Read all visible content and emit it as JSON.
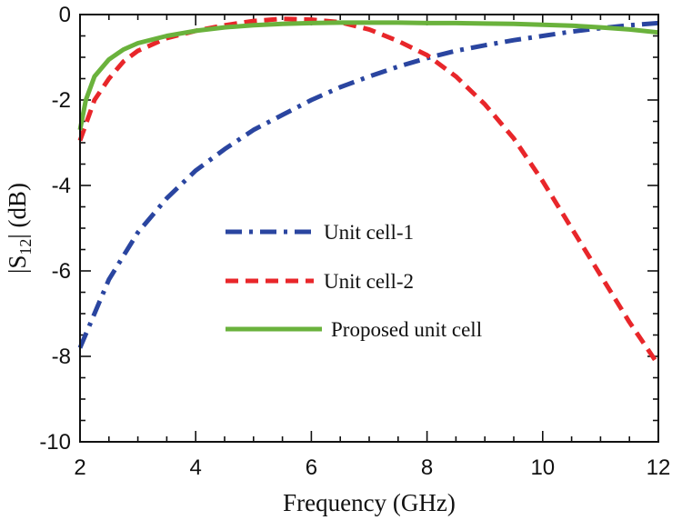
{
  "chart_data": {
    "type": "line",
    "title": "",
    "xlabel": "Frequency (GHz)",
    "ylabel": "|S12| (dB)",
    "ylabel_parts": {
      "prefix": "|S",
      "subscript": "12",
      "suffix": "| (dB)"
    },
    "xlim": [
      2,
      12
    ],
    "ylim": [
      -10,
      0
    ],
    "x_ticks": [
      2,
      4,
      6,
      8,
      10,
      12
    ],
    "y_ticks": [
      0,
      -2,
      -4,
      -6,
      -8,
      -10
    ],
    "x_tick_labels": [
      "2",
      "4",
      "6",
      "8",
      "10",
      "12"
    ],
    "y_tick_labels": [
      "0",
      "-2",
      "-4",
      "-6",
      "-8",
      "-10"
    ],
    "grid": false,
    "legend_position": "center",
    "series": [
      {
        "name": "Unit cell-1",
        "color": "#2a45a0",
        "style": "dashdot",
        "x": [
          2.0,
          2.5,
          3.0,
          3.5,
          4.0,
          4.5,
          5.0,
          5.5,
          6.0,
          6.5,
          7.0,
          7.5,
          8.0,
          8.5,
          9.0,
          9.5,
          10.0,
          10.5,
          11.0,
          11.5,
          12.0
        ],
        "y": [
          -7.8,
          -6.2,
          -5.1,
          -4.3,
          -3.65,
          -3.15,
          -2.7,
          -2.35,
          -2.0,
          -1.7,
          -1.45,
          -1.22,
          -1.02,
          -0.85,
          -0.72,
          -0.6,
          -0.5,
          -0.4,
          -0.32,
          -0.25,
          -0.2
        ]
      },
      {
        "name": "Unit cell-2",
        "color": "#e8262a",
        "style": "dashed",
        "x": [
          2.0,
          2.25,
          2.5,
          2.75,
          3.0,
          3.5,
          4.0,
          4.5,
          5.0,
          5.5,
          6.0,
          6.5,
          7.0,
          7.5,
          8.0,
          8.5,
          9.0,
          9.5,
          10.0,
          10.5,
          11.0,
          11.5,
          12.0
        ],
        "y": [
          -2.95,
          -2.0,
          -1.5,
          -1.1,
          -0.85,
          -0.55,
          -0.38,
          -0.25,
          -0.15,
          -0.1,
          -0.12,
          -0.18,
          -0.35,
          -0.62,
          -0.95,
          -1.45,
          -2.1,
          -2.9,
          -3.9,
          -5.0,
          -6.1,
          -7.2,
          -8.2
        ]
      },
      {
        "name": "Proposed unit cell",
        "color": "#6ab23c",
        "style": "solid",
        "x": [
          2.0,
          2.1,
          2.25,
          2.5,
          2.75,
          3.0,
          3.5,
          4.0,
          4.5,
          5.0,
          5.5,
          6.0,
          6.5,
          7.0,
          7.5,
          8.0,
          8.5,
          9.0,
          9.5,
          10.0,
          10.5,
          11.0,
          11.5,
          12.0
        ],
        "y": [
          -2.7,
          -2.0,
          -1.45,
          -1.05,
          -0.82,
          -0.67,
          -0.5,
          -0.38,
          -0.3,
          -0.25,
          -0.22,
          -0.2,
          -0.19,
          -0.19,
          -0.19,
          -0.2,
          -0.2,
          -0.21,
          -0.22,
          -0.24,
          -0.26,
          -0.3,
          -0.35,
          -0.42
        ]
      }
    ]
  }
}
